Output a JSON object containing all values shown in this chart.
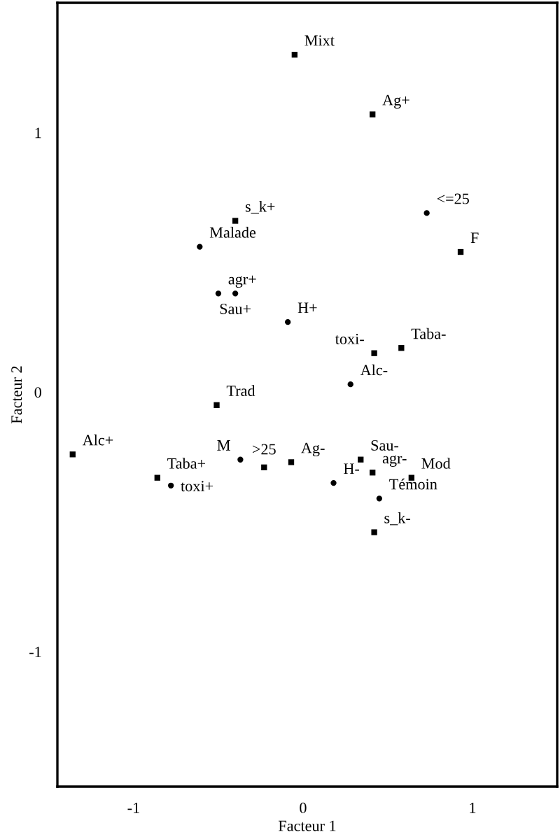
{
  "chart_data": {
    "type": "scatter",
    "xlabel": "Facteur 1",
    "ylabel": "Facteur 2",
    "xlim": [
      -1.45,
      1.5
    ],
    "ylim": [
      -1.52,
      1.5
    ],
    "xticks": [
      -1,
      0,
      1
    ],
    "yticks": [
      -1,
      0,
      1
    ],
    "grid": false,
    "legend": false,
    "series": [
      {
        "marker": "square",
        "color": "#000000",
        "x": [
          -0.05,
          0.41,
          0.93,
          -0.4,
          0.42,
          0.58,
          -0.51,
          -1.36,
          -0.86,
          -0.23,
          -0.07,
          0.34,
          0.41,
          0.64,
          0.42
        ],
        "values": [
          1.3,
          1.07,
          0.54,
          0.66,
          0.15,
          0.17,
          -0.05,
          -0.24,
          -0.33,
          -0.29,
          -0.27,
          -0.26,
          -0.31,
          -0.33,
          -0.54
        ]
      },
      {
        "marker": "circle",
        "color": "#000000",
        "x": [
          0.73,
          -0.61,
          -0.5,
          -0.4,
          -0.09,
          0.28,
          -0.78,
          -0.37,
          0.18,
          0.45
        ],
        "values": [
          0.69,
          0.56,
          0.38,
          0.38,
          0.27,
          0.03,
          -0.36,
          -0.26,
          -0.35,
          -0.41
        ]
      }
    ],
    "annotations": [
      {
        "text": "Mixt",
        "x": -0.05,
        "y": 1.3
      },
      {
        "text": "Ag+",
        "x": 0.41,
        "y": 1.07
      },
      {
        "text": "F",
        "x": 0.93,
        "y": 0.54
      },
      {
        "text": "s_k+",
        "x": -0.4,
        "y": 0.66
      },
      {
        "text": "toxi-",
        "x": 0.42,
        "y": 0.15
      },
      {
        "text": "Taba-",
        "x": 0.58,
        "y": 0.17
      },
      {
        "text": "Trad",
        "x": -0.51,
        "y": -0.05
      },
      {
        "text": "Alc+",
        "x": -1.36,
        "y": -0.24
      },
      {
        "text": "Taba+",
        "x": -0.86,
        "y": -0.33
      },
      {
        "text": ">25",
        "x": -0.23,
        "y": -0.29
      },
      {
        "text": "Ag-",
        "x": -0.07,
        "y": -0.27
      },
      {
        "text": "Sau-",
        "x": 0.34,
        "y": -0.26
      },
      {
        "text": "agr-",
        "x": 0.41,
        "y": -0.31
      },
      {
        "text": "Mod",
        "x": 0.64,
        "y": -0.33
      },
      {
        "text": "s_k-",
        "x": 0.42,
        "y": -0.54
      },
      {
        "text": "<=25",
        "x": 0.73,
        "y": 0.69
      },
      {
        "text": "Malade",
        "x": -0.61,
        "y": 0.56
      },
      {
        "text": "agr+",
        "x": -0.5,
        "y": 0.38
      },
      {
        "text": "Sau+",
        "x": -0.4,
        "y": 0.38
      },
      {
        "text": "H+",
        "x": -0.09,
        "y": 0.27
      },
      {
        "text": "Alc-",
        "x": 0.28,
        "y": 0.03
      },
      {
        "text": "toxi+",
        "x": -0.78,
        "y": -0.36
      },
      {
        "text": "M",
        "x": -0.37,
        "y": -0.26
      },
      {
        "text": "H-",
        "x": 0.18,
        "y": -0.35
      },
      {
        "text": "Témoin",
        "x": 0.45,
        "y": -0.41
      }
    ]
  }
}
